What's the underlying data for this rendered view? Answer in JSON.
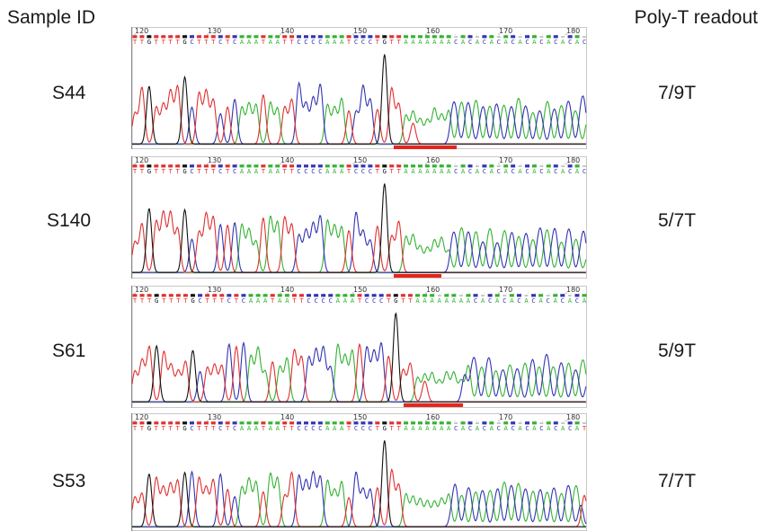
{
  "headers": {
    "left": "Sample ID",
    "right": "Poly-T readout"
  },
  "positions": [
    "120",
    "130",
    "140",
    "150",
    "160",
    "170",
    "180"
  ],
  "colors": {
    "A": "#33b233",
    "C": "#3333b2",
    "G": "#111111",
    "T": "#e03030",
    "marker": "#e8241c"
  },
  "samples": [
    {
      "id": "S44",
      "readout": "7/9T",
      "sequence": "TTGTTTTGCTTTCTCAAATAATTCCCCAAATCCCTGTTAAAAAAACACACACACACACACACAC"
    },
    {
      "id": "S140",
      "readout": "5/7T",
      "sequence": "TTGTTTTGCTTTCTCAAATAATTCCCCAAATCCCTGTTAAAAAAACACACACACACACACACAC"
    },
    {
      "id": "S61",
      "readout": "5/9T",
      "sequence": "TTTGTTTTGCTTTCTCAAATAATTCCCCAAATCCCTGTTAAAAAAAACACACACACACACACA"
    },
    {
      "id": "S53",
      "readout": "7/7T",
      "sequence": "TTGTTTTGCTTTCTCAAATAATTCCCCAAATCCCTGTTAAAAAAACACACACACACACACACAT"
    }
  ]
}
